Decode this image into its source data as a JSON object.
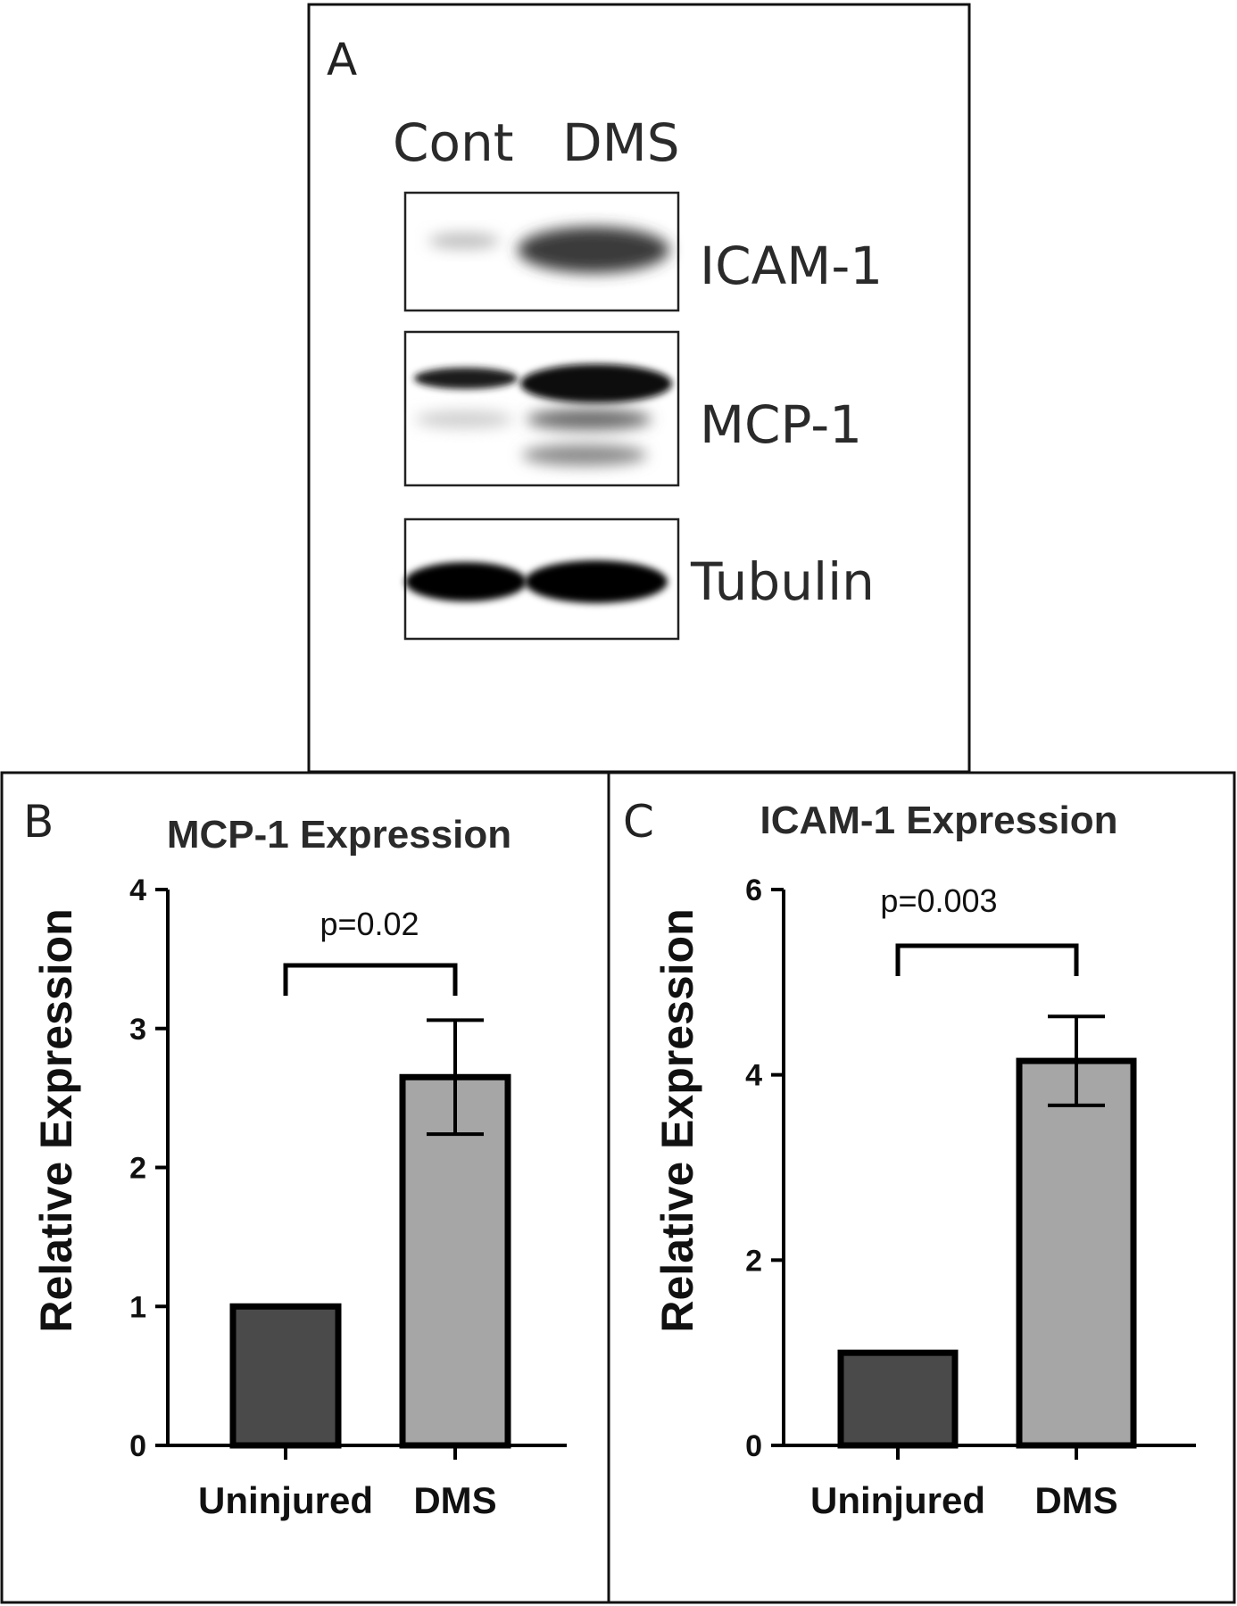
{
  "panel_a": {
    "letter": "A",
    "lanes": [
      "Cont",
      "DMS"
    ],
    "blots": [
      {
        "label": "ICAM-1"
      },
      {
        "label": "MCP-1"
      },
      {
        "label": "Tubulin"
      }
    ]
  },
  "panel_b": {
    "letter": "B"
  },
  "panel_c": {
    "letter": "C"
  },
  "colors": {
    "dark_bar": "#4a4a4a",
    "light_bar": "#a6a6a6",
    "stroke": "#000000"
  },
  "chart_data": [
    {
      "type": "bar",
      "title": "MCP-1 Expression",
      "ylabel": "Relative Expression",
      "xlabel": "",
      "categories": [
        "Uninjured",
        "DMS"
      ],
      "values": [
        1.0,
        2.65
      ],
      "error": [
        0,
        0.41
      ],
      "ylim": [
        0,
        4
      ],
      "yticks": [
        0,
        1,
        2,
        3,
        4
      ],
      "annotation": "p=0.02"
    },
    {
      "type": "bar",
      "title": "ICAM-1 Expression",
      "ylabel": "Relative Expression",
      "xlabel": "",
      "categories": [
        "Uninjured",
        "DMS"
      ],
      "values": [
        1.0,
        4.15
      ],
      "error": [
        0,
        0.48
      ],
      "ylim": [
        0,
        6
      ],
      "yticks": [
        0,
        2,
        4,
        6
      ],
      "annotation": "p=0.003"
    }
  ]
}
